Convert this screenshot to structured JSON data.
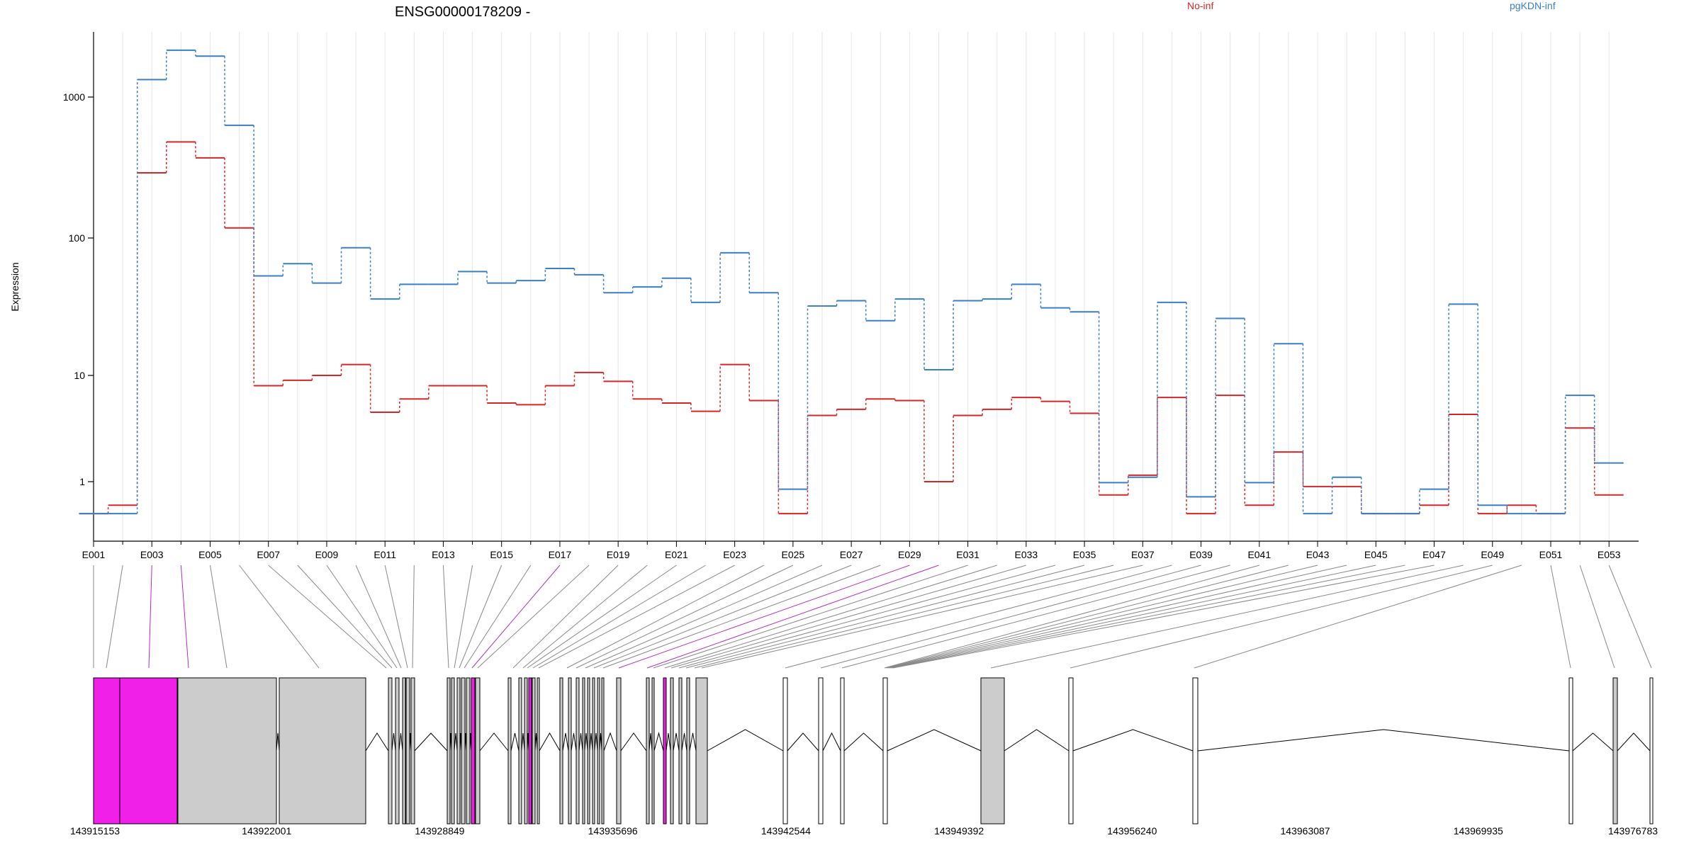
{
  "chart_data": {
    "type": "line",
    "title": "ENSG00000178209 -",
    "ylabel": "Expression",
    "xlabel": "",
    "y_scale": "log",
    "ylim": [
      0.4,
      3000
    ],
    "y_ticks": [
      1,
      10,
      100,
      1000
    ],
    "y_tick_labels": [
      "1",
      "10",
      "100",
      "1000"
    ],
    "grid": "vertical lines at every exon",
    "legend_position": "top-right",
    "colors": {
      "No-inf": "#d62728",
      "pgKDN-inf": "#3b7fc4",
      "highlight": "#f020e8",
      "exon_fill": "#cccccc"
    },
    "categories": [
      "E001",
      "E002",
      "E003",
      "E004",
      "E005",
      "E006",
      "E007",
      "E008",
      "E009",
      "E010",
      "E011",
      "E012",
      "E013",
      "E014",
      "E015",
      "E016",
      "E017",
      "E018",
      "E019",
      "E020",
      "E021",
      "E022",
      "E023",
      "E024",
      "E025",
      "E026",
      "E027",
      "E028",
      "E029",
      "E030",
      "E031",
      "E032",
      "E033",
      "E034",
      "E035",
      "E036",
      "E037",
      "E038",
      "E039",
      "E040",
      "E041",
      "E042",
      "E043",
      "E044",
      "E045",
      "E046",
      "E047",
      "E048",
      "E049",
      "E050",
      "E051",
      "E052",
      "E053"
    ],
    "x_tick_labels": [
      "E001",
      "E003",
      "E005",
      "E007",
      "E009",
      "E011",
      "E013",
      "E015",
      "E017",
      "E019",
      "E021",
      "E023",
      "E025",
      "E027",
      "E029",
      "E031",
      "E033",
      "E035",
      "E037",
      "E039",
      "E041",
      "E043",
      "E045",
      "E047",
      "E049",
      "E051",
      "E053"
    ],
    "series": [
      {
        "name": "No-inf",
        "values": [
          0.5,
          0.6,
          290,
          480,
          370,
          118,
          8,
          9,
          10,
          12,
          4.5,
          6,
          8,
          8,
          5.5,
          5.3,
          8,
          10.5,
          8.8,
          6,
          5.5,
          4.6,
          12,
          5.8,
          0.5,
          4.2,
          4.8,
          6,
          5.8,
          1,
          4.2,
          4.8,
          6.2,
          5.7,
          4.4,
          0.75,
          1.15,
          6.2,
          0.5,
          6.5,
          0.6,
          1.9,
          0.9,
          0.9,
          0.5,
          0.5,
          0.6,
          4.3,
          0.5,
          0.6,
          0.5,
          3.2,
          0.75
        ]
      },
      {
        "name": "pgKDN-inf",
        "values": [
          0.5,
          0.5,
          1330,
          2150,
          1950,
          630,
          53,
          65,
          47,
          85,
          36,
          46,
          46,
          57,
          47,
          49,
          60,
          54,
          40,
          44,
          51,
          34,
          78,
          40,
          0.85,
          32,
          35,
          25,
          36,
          11,
          35,
          36,
          46,
          31,
          29,
          0.98,
          1.1,
          34,
          0.72,
          26,
          0.98,
          17,
          0.5,
          1.1,
          0.5,
          0.5,
          0.85,
          33,
          0.6,
          0.5,
          0.5,
          6.5,
          1.5
        ]
      }
    ],
    "genomic_axis": {
      "tick_labels": [
        "143915153",
        "143922001",
        "143928849",
        "143935696",
        "143942544",
        "143949392",
        "143956240",
        "143963087",
        "143969935",
        "143976783"
      ]
    }
  },
  "legend": {
    "no_inf": "No-inf",
    "pgkdn_inf": "pgKDN-inf"
  },
  "title": "ENSG00000178209 -",
  "ylabel": "Expression"
}
